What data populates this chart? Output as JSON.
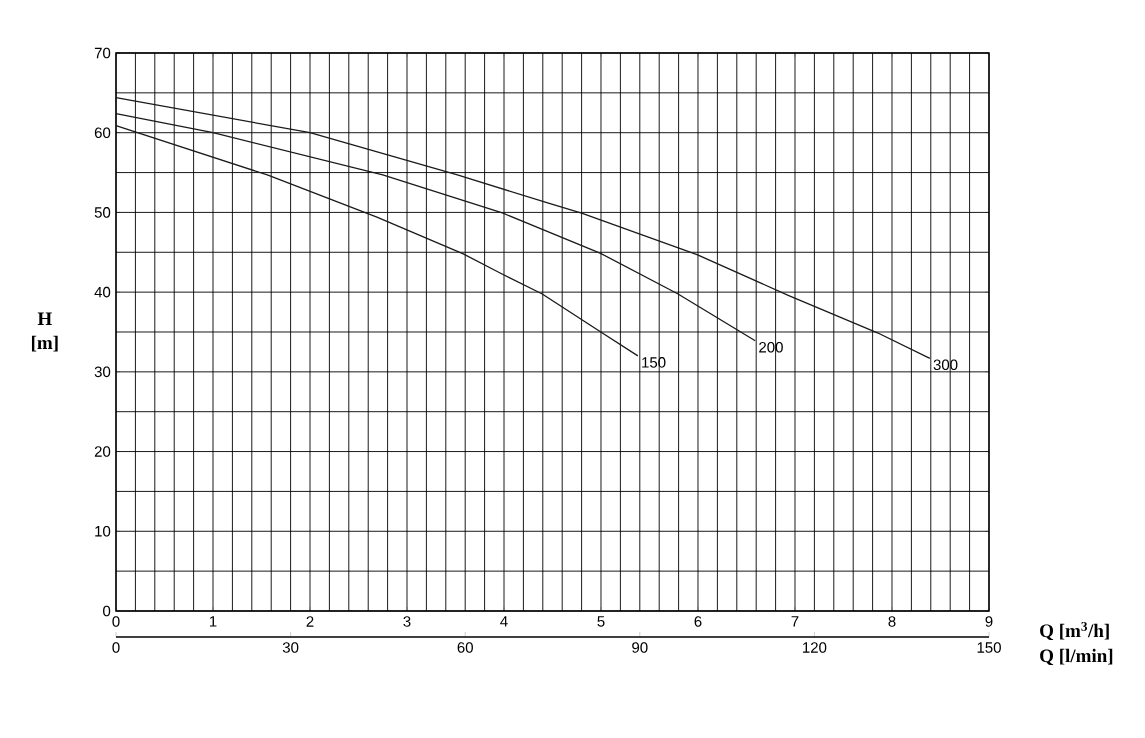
{
  "chart_data": {
    "type": "line",
    "xlabel": "Q [m$^{3}$/h]",
    "x2label": "Q [l/min]",
    "ylabel": "H [m]",
    "xlim": [
      0,
      9
    ],
    "xticks": [
      0,
      1,
      2,
      3,
      4,
      5,
      6,
      7,
      8,
      9
    ],
    "x2lim": [
      0,
      150
    ],
    "x2ticks": [
      0,
      30,
      60,
      90,
      120,
      150
    ],
    "ylim": [
      0,
      70
    ],
    "yticks": [
      0,
      10,
      20,
      30,
      40,
      50,
      60,
      70
    ],
    "grid": true,
    "series": [
      {
        "name": "150",
        "color": "#1a1a1a",
        "x": [
          0,
          1.56,
          2.69,
          3.58,
          3.96,
          4.39,
          5.01,
          5.38
        ],
        "values": [
          60.9,
          54.7,
          49.4,
          44.8,
          42.4,
          39.8,
          34.9,
          32.0
        ]
      },
      {
        "name": "200",
        "color": "#1a1a1a",
        "x": [
          0,
          1.0,
          2.75,
          3.99,
          4.99,
          5.79,
          6.59
        ],
        "values": [
          62.4,
          60.0,
          54.7,
          49.9,
          44.9,
          39.8,
          33.9
        ]
      },
      {
        "name": "300",
        "color": "#1a1a1a",
        "x": [
          0,
          2.0,
          3.52,
          4.45,
          4.8,
          5.99,
          6.93,
          7.85,
          8.39
        ],
        "values": [
          64.4,
          60.0,
          54.7,
          51.2,
          49.9,
          44.7,
          39.6,
          34.9,
          31.7
        ]
      }
    ]
  }
}
